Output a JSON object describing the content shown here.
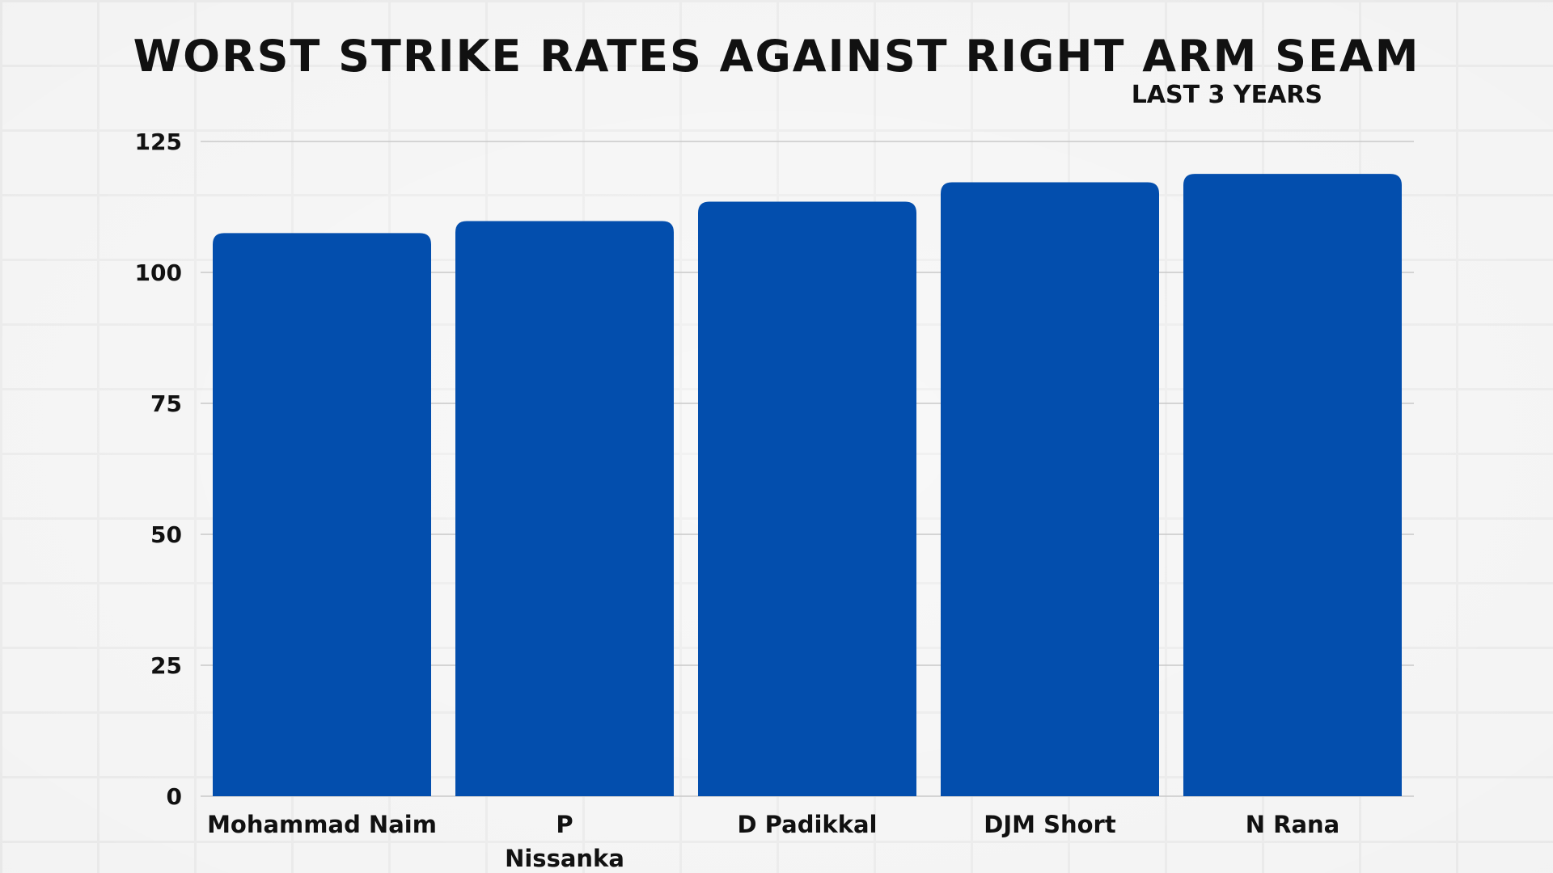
{
  "chart_data": {
    "type": "bar",
    "title": "Worst Strike Rates Against Right Arm Seam",
    "subtitle": "LAST 3 YEARS",
    "categories": [
      "Mohammad Naim",
      "P Nissanka",
      "D Padikkal",
      "DJM Short",
      "N Rana"
    ],
    "category_lines": [
      [
        "Mohammad Naim"
      ],
      [
        "P",
        "Nissanka"
      ],
      [
        "D Padikkal"
      ],
      [
        "DJM Short"
      ],
      [
        "N Rana"
      ]
    ],
    "values": [
      107.5,
      109.8,
      113.5,
      117.2,
      118.8
    ],
    "ylim": [
      0,
      125
    ],
    "yticks": [
      0,
      25,
      50,
      75,
      100,
      125
    ],
    "grid": true,
    "xlabel": "",
    "ylabel": "",
    "bar_color": "#034ead",
    "grid_color": "#c9c9c9",
    "text_color": "#111111"
  }
}
